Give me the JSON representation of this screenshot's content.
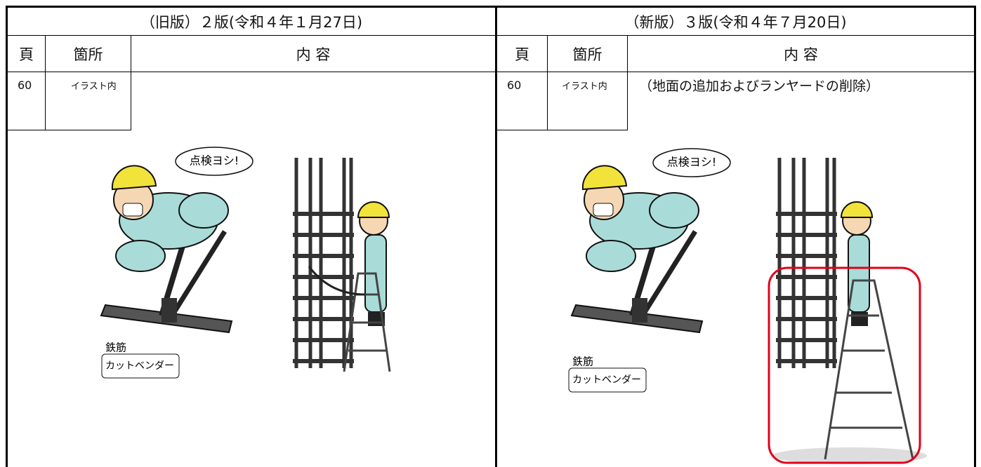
{
  "left": {
    "header": "（旧版）２版(令和４年１月27日)",
    "columns": [
      "頁",
      "箇所",
      "内 容"
    ],
    "row": {
      "page": "60",
      "location": "イラスト内"
    },
    "illustration": {
      "speech": "点検ヨシ!",
      "label": [
        "鉄筋",
        "カットベンダー"
      ]
    }
  },
  "right": {
    "header": "（新版）３版(令和４年７月20日)",
    "columns": [
      "頁",
      "箇所",
      "内 容"
    ],
    "row": {
      "page": "60",
      "location": "イラスト内",
      "content": "（地面の追加およびランヤードの削除）"
    },
    "illustration": {
      "speech": "点検ヨシ!",
      "label": [
        "鉄筋",
        "カットベンダー"
      ]
    }
  }
}
